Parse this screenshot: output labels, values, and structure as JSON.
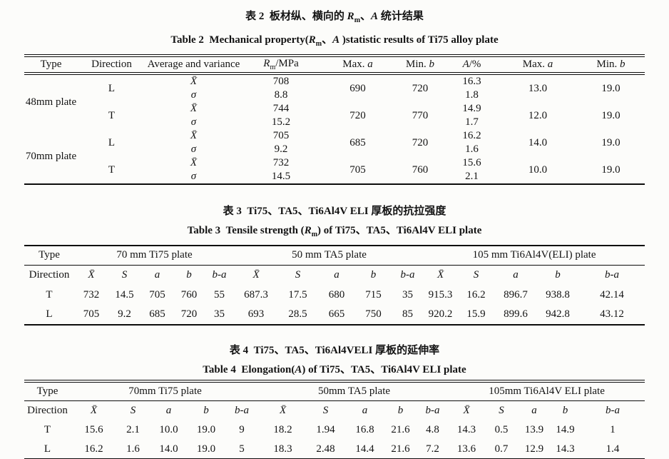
{
  "page": {
    "background": "#fcfcfa",
    "ink": "#131313"
  },
  "table2": {
    "title_zh_html": "表 2&nbsp;&nbsp;板材纵、横向的 <i>R</i><sub>m</sub>、<i>A</i> 统计结果",
    "title_en_html": "Table 2&nbsp;&nbsp;Mechanical property(<i>R</i><sub>m</sub>、<i>A</i> )statistic results of Ti75 alloy plate",
    "headers": {
      "type": "Type",
      "direction": "Direction",
      "avg_var": "Average and variance",
      "rm_html": "<i>R</i><sub>m</sub>/MPa",
      "max_a_html": "Max. <i>a</i>",
      "min_b_html": "Min. <i>b</i>",
      "a_pct_html": "<i>A</i>/%"
    },
    "stat_mean": "X̄",
    "stat_sigma": "σ",
    "groups": [
      {
        "type": "48mm plate",
        "dirs": [
          {
            "dir": "L",
            "mean_rm": "708",
            "sigma_rm": "8.8",
            "max_a": "690",
            "min_b": "720",
            "mean_a_pct": "16.3",
            "sigma_a_pct": "1.8",
            "a_max": "13.0",
            "a_min": "19.0"
          },
          {
            "dir": "T",
            "mean_rm": "744",
            "sigma_rm": "15.2",
            "max_a": "720",
            "min_b": "770",
            "mean_a_pct": "14.9",
            "sigma_a_pct": "1.7",
            "a_max": "12.0",
            "a_min": "19.0"
          }
        ]
      },
      {
        "type": "70mm plate",
        "dirs": [
          {
            "dir": "L",
            "mean_rm": "705",
            "sigma_rm": "9.2",
            "max_a": "685",
            "min_b": "720",
            "mean_a_pct": "16.2",
            "sigma_a_pct": "1.6",
            "a_max": "14.0",
            "a_min": "19.0"
          },
          {
            "dir": "T",
            "mean_rm": "732",
            "sigma_rm": "14.5",
            "max_a": "705",
            "min_b": "760",
            "mean_a_pct": "15.6",
            "sigma_a_pct": "2.1",
            "a_max": "10.0",
            "a_min": "19.0"
          }
        ]
      }
    ]
  },
  "table3": {
    "title_zh_html": "表 3&nbsp;&nbsp;Ti75、TA5、Ti6Al4V ELI 厚板的抗拉强度",
    "title_en_html": "Table 3&nbsp;&nbsp;Tensile strength (<i>R</i><sub>m</sub>) of Ti75、TA5、Ti6Al4V ELI plate",
    "col_type": "Type",
    "col_direction": "Direction",
    "group_headers": [
      "70 mm Ti75 plate",
      "50 mm TA5 plate",
      "105 mm Ti6Al4V(ELI) plate"
    ],
    "sub_headers": [
      "X̄",
      "S",
      "a",
      "b",
      "b-a"
    ],
    "rows": [
      {
        "dir": "T",
        "values": [
          "732",
          "14.5",
          "705",
          "760",
          "55",
          "687.3",
          "17.5",
          "680",
          "715",
          "35",
          "915.3",
          "16.2",
          "896.7",
          "938.8",
          "42.14"
        ]
      },
      {
        "dir": "L",
        "values": [
          "705",
          "9.2",
          "685",
          "720",
          "35",
          "693",
          "28.5",
          "665",
          "750",
          "85",
          "920.2",
          "15.9",
          "899.6",
          "942.8",
          "43.12"
        ]
      }
    ]
  },
  "table4": {
    "title_zh_html": "表 4&nbsp;&nbsp;Ti75、TA5、Ti6Al4VELI 厚板的延伸率",
    "title_en_html": "Table 4&nbsp;&nbsp;Elongation(<i>A</i>) of Ti75、TA5、Ti6Al4V ELI plate",
    "col_type": "Type",
    "col_direction": "Direction",
    "group_headers": [
      "70mm Ti75 plate",
      "50mm TA5 plate",
      "105mm Ti6Al4V ELI plate"
    ],
    "sub_headers": [
      "X̄",
      "S",
      "a",
      "b",
      "b-a"
    ],
    "rows": [
      {
        "dir": "T",
        "values": [
          "15.6",
          "2.1",
          "10.0",
          "19.0",
          "9",
          "18.2",
          "1.94",
          "16.8",
          "21.6",
          "4.8",
          "14.3",
          "0.5",
          "13.9",
          "14.9",
          "1"
        ]
      },
      {
        "dir": "L",
        "values": [
          "16.2",
          "1.6",
          "14.0",
          "19.0",
          "5",
          "18.3",
          "2.48",
          "14.4",
          "21.6",
          "7.2",
          "13.6",
          "0.7",
          "12.9",
          "14.3",
          "1.4"
        ]
      }
    ]
  }
}
